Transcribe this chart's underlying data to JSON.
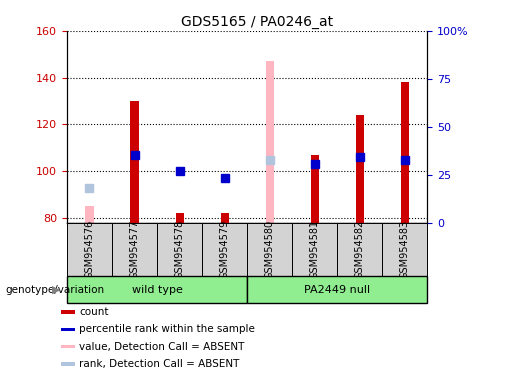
{
  "title": "GDS5165 / PA0246_at",
  "samples": [
    "GSM954576",
    "GSM954577",
    "GSM954578",
    "GSM954579",
    "GSM954580",
    "GSM954581",
    "GSM954582",
    "GSM954583"
  ],
  "count_values": [
    null,
    130,
    82,
    82,
    null,
    107,
    124,
    138
  ],
  "percentile_values": [
    null,
    107,
    100,
    97,
    null,
    103,
    106,
    105
  ],
  "absent_value_values": [
    85,
    null,
    null,
    null,
    147,
    null,
    null,
    null
  ],
  "absent_rank_values": [
    93,
    null,
    null,
    null,
    105,
    null,
    null,
    null
  ],
  "ylim_left": [
    78,
    160
  ],
  "ylim_right": [
    0,
    100
  ],
  "yticks_left": [
    80,
    100,
    120,
    140,
    160
  ],
  "yticks_right": [
    0,
    25,
    50,
    75,
    100
  ],
  "ytick_labels_right": [
    "0",
    "25",
    "50",
    "75",
    "100%"
  ],
  "left_tick_color": "#cc0000",
  "right_tick_color": "#0000cc",
  "bar_width": 0.18,
  "marker_size": 6,
  "count_color": "#cc0000",
  "percentile_color": "#0000cc",
  "absent_value_color": "#ffb6c1",
  "absent_rank_color": "#b0c4de",
  "background_label": "#d3d3d3",
  "group_color": "#90EE90",
  "group_labels": [
    "wild type",
    "PA2449 null"
  ],
  "group_ranges": [
    [
      0,
      3
    ],
    [
      4,
      7
    ]
  ],
  "legend_items": [
    {
      "color": "#cc0000",
      "label": "count"
    },
    {
      "color": "#0000cc",
      "label": "percentile rank within the sample"
    },
    {
      "color": "#ffb6c1",
      "label": "value, Detection Call = ABSENT"
    },
    {
      "color": "#b0c4de",
      "label": "rank, Detection Call = ABSENT"
    }
  ]
}
